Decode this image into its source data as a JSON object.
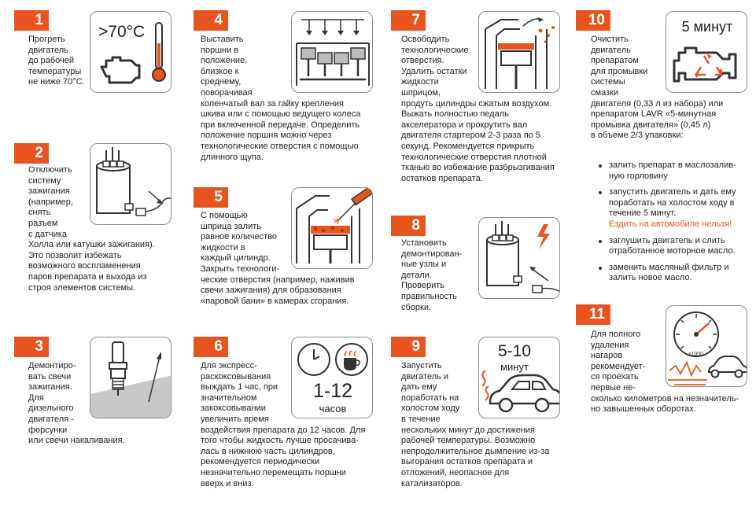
{
  "steps": [
    {
      "num": "1",
      "lines": [
        "Прогреть",
        "двигатель",
        "до рабочей",
        "температуры",
        "не ниже 70°C."
      ],
      "illus_text": ">70°C"
    },
    {
      "num": "2",
      "lines": [
        "Отключить",
        "систему",
        "зажигания",
        "(например,",
        "снять",
        "разъем",
        "с датчика",
        "Холла или катушки зажигания).",
        "Это позволит избежать",
        "возможного воспламенения",
        "паров препарата и выхода из",
        "строя элементов системы."
      ]
    },
    {
      "num": "3",
      "lines": [
        "Демонтиро-",
        "вать свечи",
        "зажигания.",
        "Для",
        "дизельного",
        "двигателя -",
        "форсунки",
        "или свечи накаливания."
      ]
    },
    {
      "num": "4",
      "lines": [
        "Выставить",
        "поршни в",
        "положение,",
        "близкое к",
        "среднему,",
        "поворачивая",
        "коленчатый вал за гайку крепления",
        "шкива или с помощью ведущего колеса",
        "при включенной передаче. Определить",
        "положение поршня можно через",
        "технологические отверстия с помощью",
        "длинного щупа."
      ]
    },
    {
      "num": "5",
      "lines": [
        "С помощью",
        "шприца залить",
        "равное количество",
        "жидкости в",
        "каждый цилиндр.",
        "Закрыть технологи-",
        "ческие отверстия (например, наживив",
        "свечи зажигания) для образования",
        "«паровой бани» в камерах сгорания."
      ]
    },
    {
      "num": "6",
      "lines": [
        "Для экспресс-",
        "раскоксовывания",
        "выждать  1 час, при",
        "значительном",
        "закоксовывании",
        "увеличить время",
        "воздействия препарата до 12 часов. Для",
        "того чтобы жидкость лучше просачива-",
        "лась в нижнюю часть цилиндров,",
        "рекомендуется периодически",
        "незначительно перемещать поршни",
        "вверх и вниз."
      ],
      "illus_big": "1-12",
      "illus_unit": "часов"
    },
    {
      "num": "7",
      "lines": [
        "Освободить",
        "технологические",
        "отверстия.",
        "Удалить остатки",
        "жидкости",
        "шприцом,",
        "продуть цилиндры сжатым воздухом.",
        "Выжать полностью педаль",
        "акселератора и прокрутить вал",
        "двигателя стартером 2-3 раза по 5",
        "секунд. Рекомендуется прикрыть",
        "технологические отверстия плотной",
        "тканью во избежание разбрызгивания",
        "остатков препарата."
      ]
    },
    {
      "num": "8",
      "lines": [
        "Установить",
        "демонтирован-",
        "ные узлы и",
        "детали.",
        "Проверить",
        "правильность",
        "сборки."
      ]
    },
    {
      "num": "9",
      "lines": [
        "Запустить",
        "двигатель и",
        "дать ему",
        "поработать на",
        "холостом ходу",
        "в течение",
        "нескольких минут до достижения",
        "рабочей температуры. Возможно",
        "непродолжительное дымление из-за",
        "выгорания остатков препарата и",
        "отложений, неопасное для",
        "катализаторов."
      ],
      "illus_big": "5-10",
      "illus_unit": "минут"
    },
    {
      "num": "10",
      "lines": [
        "Очистить",
        "двигатель",
        "препаратом",
        "для промывки",
        "системы",
        "смазки",
        "двигателя (0,33 л из набора) или",
        "препаратом LAVR «5-минутная",
        "промывка двигателя» (0,45 л)",
        "в объеме 2/3 упаковки:"
      ],
      "illus_text": "5 минут",
      "bullets": [
        {
          "lines": [
            "залить препарат в маслозалив-",
            "ную горловину"
          ]
        },
        {
          "lines": [
            "запустить двигатель и дать ему",
            "поработать на холостом ходу в",
            "течение 5 минут."
          ],
          "warning": "Ездить на автомобиле нельзя!"
        },
        {
          "lines": [
            "заглушить двигатель и слить",
            "отработанное моторное масло."
          ]
        },
        {
          "lines": [
            "заменить масляный фильтр и",
            "залить новое масло."
          ]
        }
      ]
    },
    {
      "num": "11",
      "lines": [
        "Для полного",
        "удаления",
        "нагаров",
        "рекомендует-",
        "ся проехать",
        "первые не-",
        "сколько километров на незначитель-",
        "но завышенных оборотах."
      ],
      "tacho_label": "x1000"
    }
  ],
  "colors": {
    "accent": "#e8541e",
    "text": "#222222",
    "frame": "#8c8c8c"
  }
}
